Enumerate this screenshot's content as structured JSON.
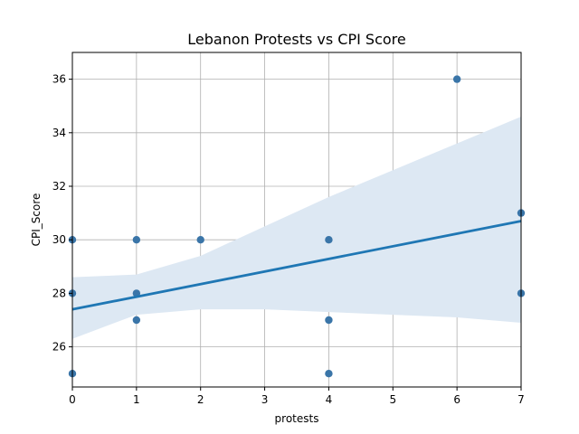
{
  "chart_data": {
    "type": "scatter",
    "title": "Lebanon Protests vs CPI Score",
    "xlabel": "protests",
    "ylabel": "CPI_Score",
    "xlim": [
      0,
      7
    ],
    "ylim": [
      24.5,
      37.0
    ],
    "xticks": [
      0,
      1,
      2,
      3,
      4,
      5,
      6,
      7
    ],
    "yticks": [
      26,
      28,
      30,
      32,
      34,
      36
    ],
    "grid": true,
    "points": [
      {
        "x": 0,
        "y": 30
      },
      {
        "x": 0,
        "y": 28
      },
      {
        "x": 0,
        "y": 25
      },
      {
        "x": 1,
        "y": 30
      },
      {
        "x": 1,
        "y": 28
      },
      {
        "x": 1,
        "y": 27
      },
      {
        "x": 2,
        "y": 30
      },
      {
        "x": 4,
        "y": 30
      },
      {
        "x": 4,
        "y": 27
      },
      {
        "x": 4,
        "y": 25
      },
      {
        "x": 6,
        "y": 36
      },
      {
        "x": 7,
        "y": 31
      },
      {
        "x": 7,
        "y": 28
      }
    ],
    "regression": {
      "line": [
        [
          0,
          27.4
        ],
        [
          7,
          30.7
        ]
      ],
      "ci_band": {
        "x": [
          0,
          1,
          2,
          3,
          4,
          5,
          6,
          7
        ],
        "lower": [
          26.3,
          27.2,
          27.4,
          27.4,
          27.3,
          27.2,
          27.1,
          26.9
        ],
        "upper": [
          28.6,
          28.7,
          29.4,
          30.5,
          31.6,
          32.6,
          33.6,
          34.6
        ]
      }
    },
    "colors": {
      "points": "#3a75a8",
      "line": "#1f77b4",
      "band": "#dde8f3",
      "grid": "#b0b0b0"
    }
  }
}
